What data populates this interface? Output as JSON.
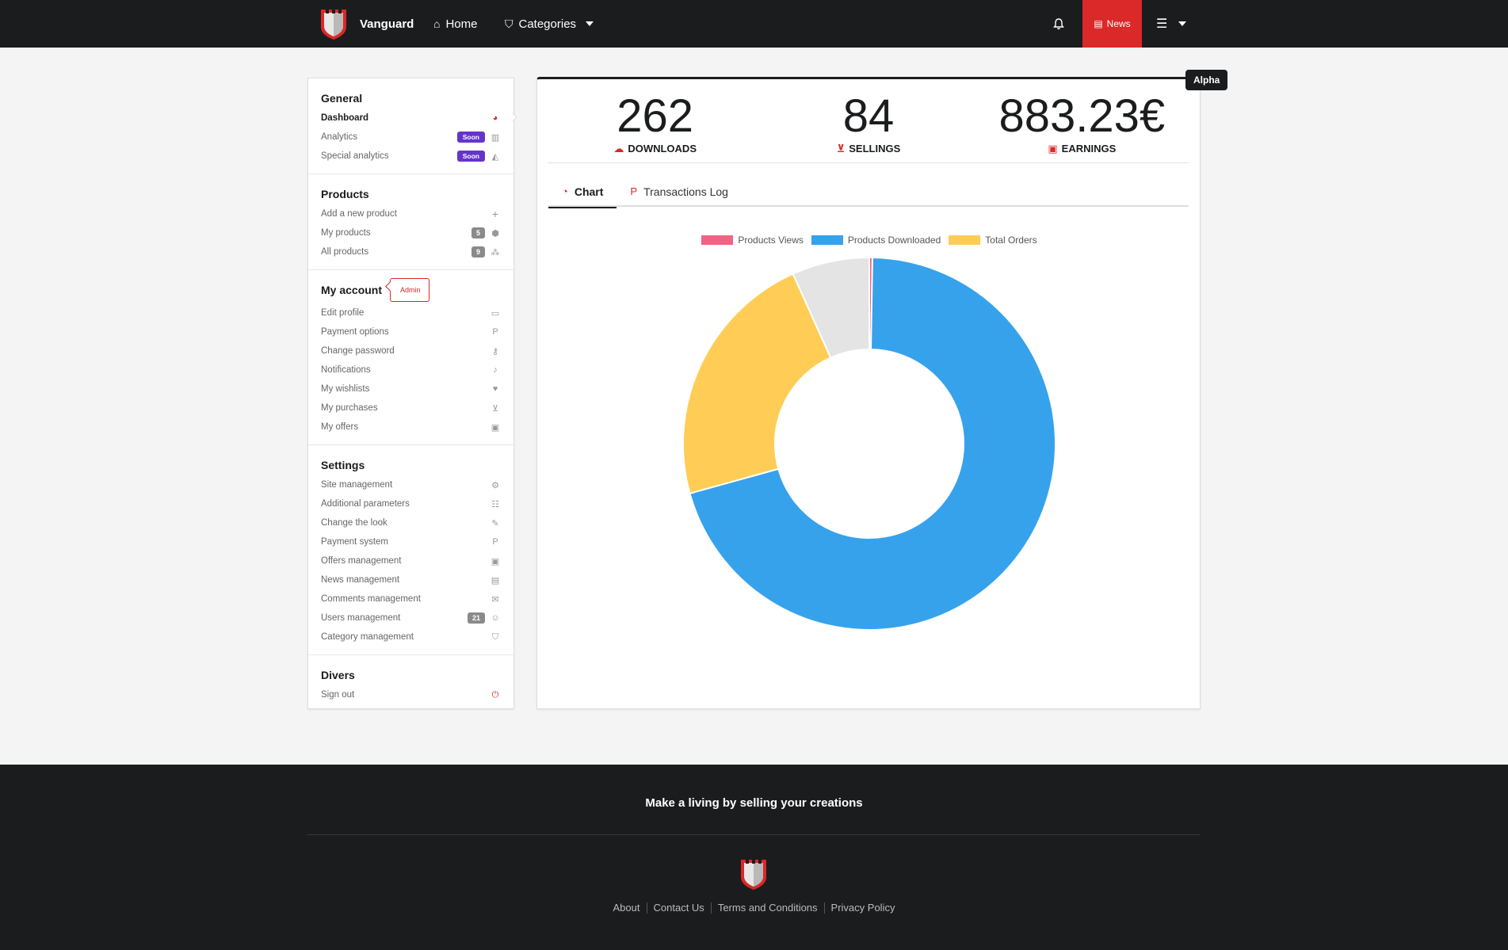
{
  "nav": {
    "brand": "Vanguard",
    "home": "Home",
    "categories": "Categories",
    "news": "News"
  },
  "sidebar": {
    "general": {
      "title": "General",
      "items": [
        {
          "label": "Dashboard",
          "icon": "dashboard-icon"
        },
        {
          "label": "Analytics",
          "badge": "Soon",
          "icon": "bar-chart-icon"
        },
        {
          "label": "Special analytics",
          "badge": "Soon",
          "icon": "area-chart-icon"
        }
      ]
    },
    "products": {
      "title": "Products",
      "items": [
        {
          "label": "Add a new product",
          "icon": "plus-icon"
        },
        {
          "label": "My products",
          "badge": "5",
          "icon": "cube-icon"
        },
        {
          "label": "All products",
          "badge": "9",
          "icon": "cubes-icon"
        }
      ]
    },
    "account": {
      "title": "My account",
      "tag": "Admin",
      "items": [
        {
          "label": "Edit profile",
          "icon": "id-card-icon"
        },
        {
          "label": "Payment options",
          "icon": "paypal-icon"
        },
        {
          "label": "Change password",
          "icon": "key-icon"
        },
        {
          "label": "Notifications",
          "icon": "bell-icon"
        },
        {
          "label": "My wishlists",
          "icon": "heart-icon"
        },
        {
          "label": "My purchases",
          "icon": "cart-icon"
        },
        {
          "label": "My offers",
          "icon": "gift-icon"
        }
      ]
    },
    "settings": {
      "title": "Settings",
      "items": [
        {
          "label": "Site management",
          "icon": "cogs-icon"
        },
        {
          "label": "Additional parameters",
          "icon": "sliders-icon"
        },
        {
          "label": "Change the look",
          "icon": "paintbrush-icon"
        },
        {
          "label": "Payment system",
          "icon": "paypal-icon"
        },
        {
          "label": "Offers management",
          "icon": "gift-icon"
        },
        {
          "label": "News management",
          "icon": "newspaper-icon"
        },
        {
          "label": "Comments management",
          "icon": "comments-icon"
        },
        {
          "label": "Users management",
          "badge": "21",
          "icon": "users-icon"
        },
        {
          "label": "Category management",
          "icon": "tags-icon"
        }
      ]
    },
    "divers": {
      "title": "Divers",
      "items": [
        {
          "label": "Sign out",
          "icon": "power-icon"
        }
      ]
    }
  },
  "alpha_label": "Alpha",
  "stats": [
    {
      "value": "262",
      "label": "DOWNLOADS",
      "icon": "cloud-download-icon"
    },
    {
      "value": "84",
      "label": "SELLINGS",
      "icon": "cart-icon"
    },
    {
      "value": "883.23€",
      "label": "EARNINGS",
      "icon": "money-icon"
    }
  ],
  "tabs": [
    {
      "label": "Chart",
      "icon": "pie-chart-icon",
      "active": true
    },
    {
      "label": "Transactions Log",
      "icon": "paypal-icon",
      "active": false
    }
  ],
  "chart_data": {
    "type": "pie",
    "variant": "doughnut",
    "legend_position": "top",
    "categories": [
      "Products Views",
      "Products Downloaded",
      "Total Orders",
      ""
    ],
    "values": [
      1,
      262,
      84,
      25
    ],
    "colors": [
      "#f06384",
      "#36a2eb",
      "#ffcd56",
      "#e4e4e4"
    ]
  },
  "footer": {
    "tagline": "Make a living by selling your creations",
    "links": [
      "About",
      "Contact Us",
      "Terms and Conditions",
      "Privacy Policy"
    ]
  },
  "colors": {
    "dark": "#1b1c1d",
    "accent_red": "#db2828",
    "soon_purple": "#6435c9"
  }
}
